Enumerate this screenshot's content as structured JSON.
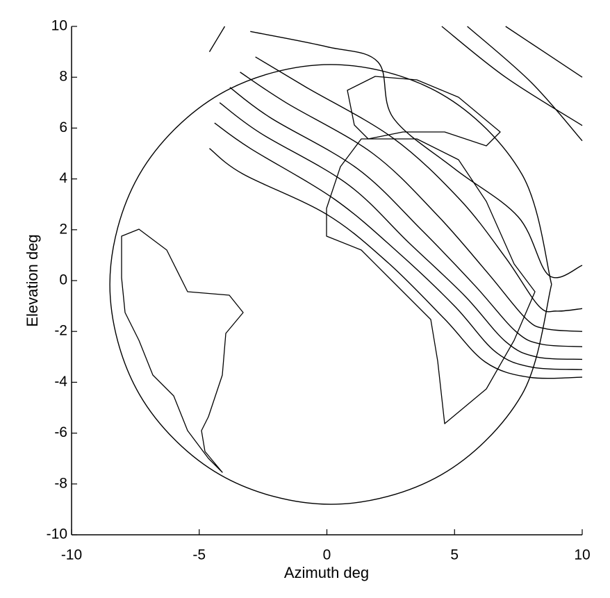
{
  "chart_data": {
    "type": "line",
    "xlabel": "Azimuth deg",
    "ylabel": "Elevation deg",
    "xlim": [
      -10,
      10
    ],
    "ylim": [
      -10,
      10
    ],
    "xticks": [
      -10,
      -5,
      0,
      5,
      10
    ],
    "yticks": [
      -10,
      -8,
      -6,
      -4,
      -2,
      0,
      2,
      4,
      6,
      8,
      10
    ],
    "series": [
      {
        "color": "#000000",
        "x": [
          8.8,
          7.64,
          4.48,
          0.15,
          -4.18,
          -7.34,
          -8.5,
          -7.34,
          -4.18,
          0.15,
          4.48,
          7.64,
          8.8
        ],
        "y": [
          -0.15,
          4.18,
          7.34,
          8.5,
          7.34,
          4.18,
          -0.15,
          -4.48,
          -7.64,
          -8.8,
          -7.64,
          -4.48,
          -0.15
        ]
      },
      {
        "color": "#000000",
        "x": [
          -4.6,
          -3.3,
          0,
          2.4,
          4.6,
          6.2,
          7.9,
          10
        ],
        "y": [
          5.2,
          4.2,
          2.6,
          0.7,
          -1.5,
          -3.2,
          -3.8,
          -3.8
        ]
      },
      {
        "color": "#000000",
        "x": [
          -4.4,
          -3.0,
          0.3,
          2.8,
          5,
          6.6,
          8,
          10
        ],
        "y": [
          6.2,
          5.2,
          3.2,
          1.1,
          -1.0,
          -2.8,
          -3.4,
          -3.5
        ]
      },
      {
        "color": "#000000",
        "x": [
          -4.2,
          -2.6,
          0.8,
          3.2,
          5.4,
          7,
          8.2,
          10
        ],
        "y": [
          7.0,
          5.8,
          3.8,
          1.5,
          -0.6,
          -2.4,
          -3,
          -3.1
        ]
      },
      {
        "color": "#000000",
        "x": [
          -3.8,
          -2.2,
          1.2,
          3.7,
          5.8,
          7.4,
          8.4,
          10
        ],
        "y": [
          7.6,
          6.4,
          4.4,
          2.0,
          -0.2,
          -2,
          -2.5,
          -2.6
        ]
      },
      {
        "color": "#000000",
        "x": [
          -3.4,
          -1.6,
          1.8,
          4.3,
          6.3,
          7.8,
          8.6,
          10
        ],
        "y": [
          8.2,
          7.0,
          5.0,
          2.6,
          0.3,
          -1.5,
          -1.9,
          -2
        ]
      },
      {
        "color": "#000000",
        "x": [
          -2.8,
          -0.8,
          2.6,
          5.2,
          7,
          8.3,
          9,
          10
        ],
        "y": [
          8.8,
          7.6,
          5.6,
          3.2,
          0.9,
          -1.0,
          -1.2,
          -1.1
        ]
      },
      {
        "color": "#000000",
        "x": [
          -3.0,
          0,
          2.0,
          2.6,
          5,
          7.5,
          8.7,
          10
        ],
        "y": [
          9.8,
          9.2,
          8.6,
          6.4,
          4.4,
          2.5,
          0.2,
          0.6
        ]
      },
      {
        "color": "#000000",
        "x": [
          4.5,
          7,
          10
        ],
        "y": [
          10,
          8,
          6.1
        ]
      },
      {
        "color": "#000000",
        "x": [
          5.5,
          8,
          10
        ],
        "y": [
          10,
          7.8,
          5.5
        ]
      },
      {
        "color": "#000000",
        "x": [
          7,
          10
        ],
        "y": [
          10,
          8
        ]
      },
      {
        "color": "#000000",
        "x": [
          -4.6,
          -4.0
        ],
        "y": [
          9.0,
          10
        ]
      }
    ]
  }
}
